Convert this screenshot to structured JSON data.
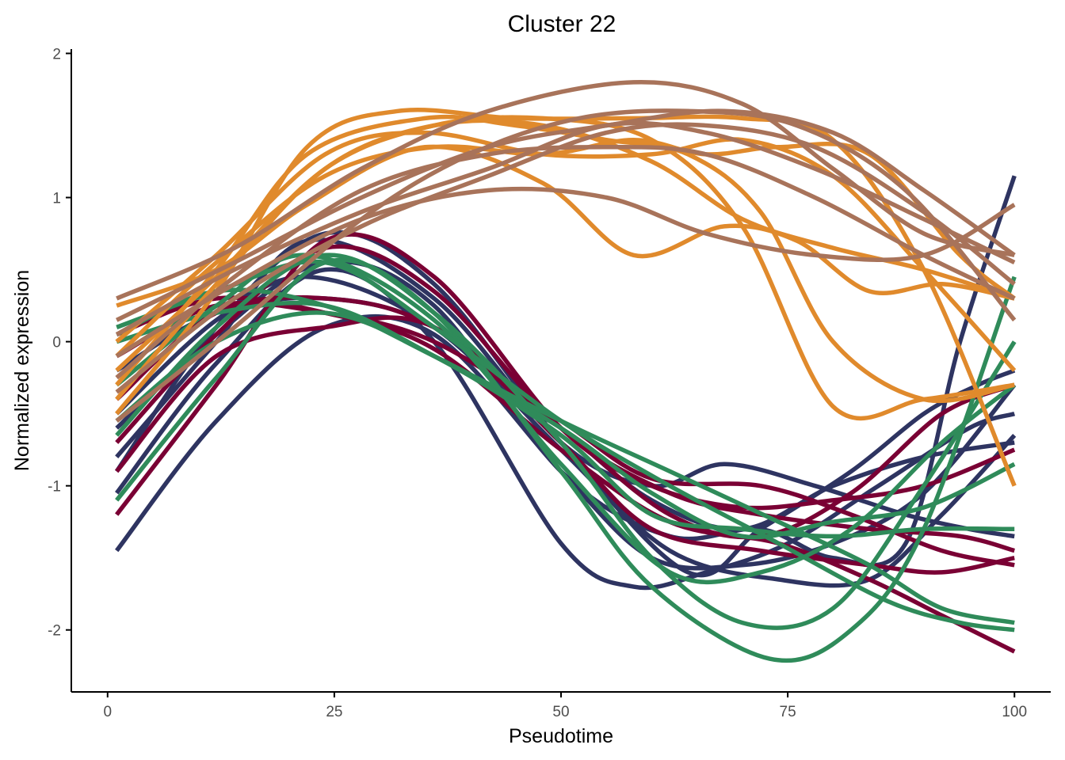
{
  "chart_data": {
    "type": "line",
    "title": "Cluster 22",
    "xlabel": "Pseudotime",
    "ylabel": "Normalized expression",
    "xlim": [
      -4,
      104
    ],
    "ylim": [
      -2.43,
      2.03
    ],
    "xticks": [
      0,
      25,
      50,
      75,
      100
    ],
    "yticks": [
      -2,
      -1,
      0,
      1,
      2
    ],
    "grid": false,
    "legend": "none",
    "series_colors": {
      "navy": "#2e3461",
      "crimson": "#7a0034",
      "green": "#2f8b5a",
      "orange": "#e08a2c",
      "brown": "#a8735a"
    },
    "series": [
      {
        "color": "navy",
        "x": [
          1,
          12,
          24,
          36,
          50,
          60,
          70,
          80,
          90,
          100
        ],
        "y": [
          -1.45,
          -0.55,
          0.1,
          0.05,
          -0.9,
          -1.5,
          -1.55,
          -1.4,
          -1.05,
          -0.3
        ]
      },
      {
        "color": "navy",
        "x": [
          1,
          12,
          24,
          36,
          50,
          58,
          66,
          75,
          85,
          95,
          100
        ],
        "y": [
          -1.05,
          -0.15,
          0.5,
          0.0,
          -1.4,
          -1.7,
          -1.6,
          -1.4,
          -1.0,
          -0.6,
          -0.5
        ]
      },
      {
        "color": "navy",
        "x": [
          1,
          12,
          22,
          36,
          50,
          60,
          68,
          78,
          88,
          95,
          100
        ],
        "y": [
          -0.8,
          0.0,
          0.7,
          0.3,
          -0.7,
          -1.0,
          -0.85,
          -1.0,
          -1.2,
          -1.3,
          -1.35
        ]
      },
      {
        "color": "navy",
        "x": [
          1,
          12,
          24,
          36,
          50,
          64,
          72,
          82,
          90,
          96,
          100
        ],
        "y": [
          -0.9,
          0.1,
          0.75,
          0.4,
          -0.7,
          -1.6,
          -1.3,
          -0.9,
          -0.5,
          -0.3,
          -0.2
        ]
      },
      {
        "color": "navy",
        "x": [
          1,
          12,
          24,
          36,
          50,
          62,
          72,
          80,
          88,
          94,
          100
        ],
        "y": [
          -0.6,
          0.05,
          0.55,
          0.25,
          -0.9,
          -1.35,
          -1.3,
          -1.5,
          -1.4,
          0.0,
          1.15
        ]
      },
      {
        "color": "navy",
        "x": [
          1,
          12,
          22,
          36,
          50,
          62,
          74,
          84,
          92,
          100
        ],
        "y": [
          -0.5,
          0.15,
          0.45,
          0.1,
          -0.75,
          -1.45,
          -1.65,
          -1.65,
          -1.2,
          -0.65
        ]
      },
      {
        "color": "navy",
        "x": [
          1,
          12,
          24,
          36,
          50,
          60,
          70,
          80,
          90,
          100
        ],
        "y": [
          -0.2,
          0.2,
          0.3,
          0.1,
          -0.6,
          -1.1,
          -1.3,
          -1.0,
          -0.8,
          -0.7
        ]
      },
      {
        "color": "crimson",
        "x": [
          1,
          12,
          24,
          36,
          50,
          60,
          70,
          80,
          90,
          100
        ],
        "y": [
          -1.2,
          -0.3,
          0.7,
          0.45,
          -0.6,
          -1.0,
          -1.15,
          -1.1,
          -1.0,
          -0.75
        ]
      },
      {
        "color": "crimson",
        "x": [
          1,
          12,
          24,
          36,
          50,
          60,
          72,
          84,
          92,
          100
        ],
        "y": [
          -0.9,
          -0.1,
          0.1,
          0.1,
          -0.7,
          -1.3,
          -1.45,
          -1.55,
          -1.6,
          -1.5
        ]
      },
      {
        "color": "crimson",
        "x": [
          1,
          12,
          24,
          36,
          50,
          62,
          72,
          82,
          92,
          100
        ],
        "y": [
          -0.4,
          0.2,
          0.3,
          0.1,
          -0.6,
          -1.2,
          -1.35,
          -1.05,
          -0.5,
          -0.3
        ]
      },
      {
        "color": "crimson",
        "x": [
          1,
          12,
          24,
          36,
          50,
          60,
          72,
          82,
          92,
          100
        ],
        "y": [
          -0.1,
          0.25,
          0.2,
          0.0,
          -0.55,
          -0.95,
          -1.0,
          -1.2,
          -1.45,
          -1.55
        ]
      },
      {
        "color": "crimson",
        "x": [
          1,
          12,
          24,
          36,
          50,
          62,
          74,
          84,
          92,
          100
        ],
        "y": [
          0.05,
          0.3,
          0.2,
          -0.05,
          -0.75,
          -1.25,
          -1.4,
          -1.65,
          -1.9,
          -2.15
        ]
      },
      {
        "color": "crimson",
        "x": [
          1,
          12,
          24,
          36,
          50,
          62,
          72,
          84,
          94,
          100
        ],
        "y": [
          -0.7,
          0.05,
          0.65,
          0.35,
          -0.6,
          -1.05,
          -1.2,
          -1.3,
          -1.35,
          -1.45
        ]
      },
      {
        "color": "green",
        "x": [
          1,
          12,
          24,
          36,
          50,
          60,
          73,
          82,
          90,
          100
        ],
        "y": [
          -1.1,
          -0.25,
          0.55,
          0.2,
          -0.9,
          -1.7,
          -2.2,
          -2.0,
          -1.3,
          0.45
        ]
      },
      {
        "color": "green",
        "x": [
          1,
          12,
          24,
          36,
          50,
          60,
          70,
          80,
          90,
          100
        ],
        "y": [
          -0.65,
          0.1,
          0.6,
          0.2,
          -0.7,
          -1.5,
          -1.95,
          -1.85,
          -1.0,
          0.0
        ]
      },
      {
        "color": "green",
        "x": [
          1,
          12,
          22,
          36,
          50,
          62,
          72,
          82,
          92,
          100
        ],
        "y": [
          -0.3,
          0.25,
          0.6,
          0.15,
          -0.85,
          -1.6,
          -1.6,
          -1.3,
          -0.7,
          -0.3
        ]
      },
      {
        "color": "green",
        "x": [
          1,
          12,
          24,
          36,
          50,
          60,
          70,
          80,
          90,
          100
        ],
        "y": [
          0.0,
          0.2,
          0.25,
          -0.1,
          -0.6,
          -1.05,
          -1.35,
          -1.25,
          -1.15,
          -0.85
        ]
      },
      {
        "color": "green",
        "x": [
          1,
          12,
          24,
          36,
          50,
          62,
          74,
          84,
          92,
          100
        ],
        "y": [
          0.05,
          0.35,
          0.25,
          -0.1,
          -0.55,
          -0.9,
          -1.25,
          -1.55,
          -1.85,
          -1.95
        ]
      },
      {
        "color": "green",
        "x": [
          1,
          12,
          24,
          36,
          50,
          62,
          74,
          86,
          94,
          100
        ],
        "y": [
          0.1,
          0.35,
          0.55,
          0.1,
          -0.55,
          -1.0,
          -1.4,
          -1.8,
          -1.95,
          -2.0
        ]
      },
      {
        "color": "green",
        "x": [
          1,
          12,
          24,
          36,
          50,
          60,
          70,
          80,
          90,
          100
        ],
        "y": [
          -0.55,
          0.0,
          0.2,
          -0.1,
          -0.65,
          -1.2,
          -1.3,
          -1.35,
          -1.3,
          -1.3
        ]
      },
      {
        "color": "orange",
        "x": [
          1,
          12,
          22,
          32,
          45,
          58,
          70,
          80,
          90,
          100
        ],
        "y": [
          -0.5,
          0.35,
          1.35,
          1.6,
          1.55,
          1.55,
          1.55,
          1.4,
          0.5,
          -1.0
        ]
      },
      {
        "color": "orange",
        "x": [
          1,
          12,
          22,
          35,
          45,
          55,
          64,
          72,
          80,
          90,
          100
        ],
        "y": [
          -0.3,
          0.5,
          1.3,
          1.55,
          1.5,
          1.4,
          1.3,
          0.9,
          0.0,
          -0.4,
          -0.3
        ]
      },
      {
        "color": "orange",
        "x": [
          1,
          12,
          24,
          36,
          48,
          58,
          66,
          74,
          84,
          94,
          100
        ],
        "y": [
          -0.1,
          0.55,
          1.15,
          1.35,
          1.3,
          1.4,
          1.3,
          1.35,
          1.3,
          0.6,
          0.3
        ]
      },
      {
        "color": "orange",
        "x": [
          1,
          12,
          24,
          35,
          48,
          60,
          70,
          80,
          90,
          100
        ],
        "y": [
          0.0,
          0.6,
          1.3,
          1.45,
          1.3,
          1.3,
          1.4,
          1.15,
          0.5,
          -0.2
        ]
      },
      {
        "color": "orange",
        "x": [
          1,
          12,
          22,
          35,
          48,
          58,
          68,
          76,
          84,
          92,
          100
        ],
        "y": [
          0.25,
          0.5,
          0.95,
          1.35,
          1.1,
          0.6,
          0.8,
          0.7,
          0.35,
          0.4,
          0.3
        ]
      },
      {
        "color": "orange",
        "x": [
          1,
          12,
          24,
          36,
          48,
          60,
          70,
          80,
          90,
          100
        ],
        "y": [
          -0.2,
          0.45,
          1.2,
          1.5,
          1.55,
          1.4,
          0.8,
          -0.45,
          -0.4,
          -0.3
        ]
      },
      {
        "color": "orange",
        "x": [
          1,
          12,
          24,
          36,
          48,
          60,
          70,
          80,
          90,
          100
        ],
        "y": [
          -0.4,
          0.4,
          1.2,
          1.5,
          1.5,
          1.25,
          0.85,
          0.65,
          0.5,
          0.3
        ]
      },
      {
        "color": "brown",
        "x": [
          1,
          14,
          28,
          42,
          58,
          70,
          80,
          90,
          100
        ],
        "y": [
          0.3,
          0.65,
          1.2,
          1.6,
          1.8,
          1.65,
          1.2,
          0.75,
          0.6
        ]
      },
      {
        "color": "brown",
        "x": [
          1,
          14,
          28,
          42,
          55,
          68,
          80,
          90,
          100
        ],
        "y": [
          0.15,
          0.55,
          1.0,
          1.35,
          1.5,
          1.6,
          1.45,
          1.05,
          0.6
        ]
      },
      {
        "color": "brown",
        "x": [
          1,
          14,
          28,
          42,
          55,
          66,
          78,
          90,
          100
        ],
        "y": [
          -0.35,
          0.3,
          0.8,
          1.15,
          1.45,
          1.5,
          1.35,
          0.9,
          0.4
        ]
      },
      {
        "color": "brown",
        "x": [
          1,
          14,
          28,
          40,
          52,
          64,
          76,
          88,
          100
        ],
        "y": [
          -0.55,
          0.1,
          0.85,
          1.3,
          1.55,
          1.6,
          1.5,
          1.05,
          0.15
        ]
      },
      {
        "color": "brown",
        "x": [
          1,
          14,
          28,
          42,
          55,
          66,
          78,
          90,
          100
        ],
        "y": [
          -0.25,
          0.45,
          1.05,
          1.3,
          1.35,
          1.3,
          1.0,
          0.6,
          0.3
        ]
      },
      {
        "color": "brown",
        "x": [
          1,
          14,
          28,
          42,
          55,
          66,
          78,
          90,
          100
        ],
        "y": [
          0.05,
          0.5,
          0.9,
          1.2,
          1.5,
          1.45,
          1.2,
          0.85,
          0.55
        ]
      },
      {
        "color": "brown",
        "x": [
          1,
          14,
          28,
          42,
          55,
          66,
          78,
          90,
          100
        ],
        "y": [
          -0.1,
          0.4,
          0.85,
          1.05,
          1.0,
          0.75,
          0.6,
          0.6,
          0.95
        ]
      }
    ]
  }
}
